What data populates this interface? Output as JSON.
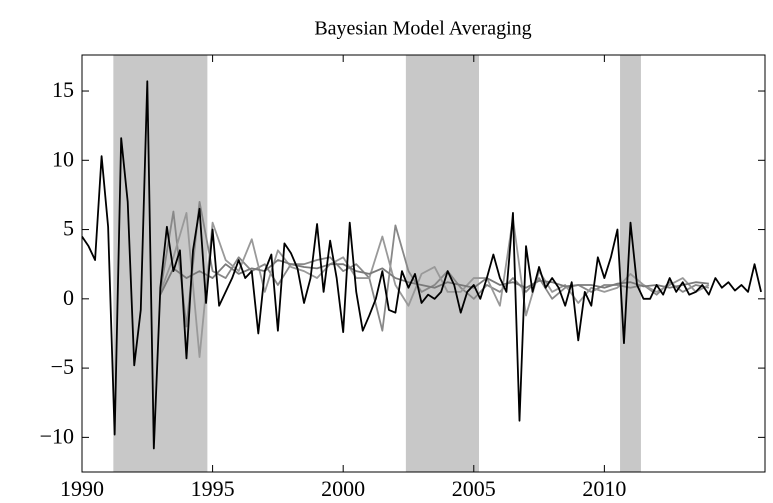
{
  "chart_data": {
    "type": "line",
    "title": "Bayesian Model Averaging",
    "xlim": [
      1990,
      2016.15
    ],
    "ylim": [
      -12.5,
      17.6
    ],
    "xticks": [
      1990,
      1995,
      2000,
      2005,
      2010
    ],
    "yticks": [
      {
        "value": -10,
        "label": "−10"
      },
      {
        "value": -5,
        "label": "−5"
      },
      0,
      5,
      10,
      15
    ],
    "shaded": [
      [
        1991.2,
        1994.8
      ],
      [
        2002.4,
        2005.2
      ],
      [
        2010.6,
        2011.4
      ]
    ],
    "shade_color": "#c8c8c8",
    "series": [
      {
        "color": "#000000",
        "x": [
          1990,
          1990.25,
          1990.5,
          1990.75,
          1991,
          1991.25,
          1991.5,
          1991.75,
          1992,
          1992.25,
          1992.5,
          1992.75,
          1993,
          1993.25,
          1993.5,
          1993.75,
          1994,
          1994.25,
          1994.5,
          1994.75,
          1995,
          1995.25,
          1995.5,
          1995.75,
          1996,
          1996.25,
          1996.5,
          1996.75,
          1997,
          1997.25,
          1997.5,
          1997.75,
          1998,
          1998.25,
          1998.5,
          1998.75,
          1999,
          1999.25,
          1999.5,
          1999.75,
          2000,
          2000.25,
          2000.5,
          2000.75,
          2001,
          2001.25,
          2001.5,
          2001.75,
          2002,
          2002.25,
          2002.5,
          2002.75,
          2003,
          2003.25,
          2003.5,
          2003.75,
          2004,
          2004.25,
          2004.5,
          2004.75,
          2005,
          2005.25,
          2005.5,
          2005.75,
          2006,
          2006.25,
          2006.5,
          2006.75,
          2007,
          2007.25,
          2007.5,
          2007.75,
          2008,
          2008.25,
          2008.5,
          2008.75,
          2009,
          2009.25,
          2009.5,
          2009.75,
          2010,
          2010.25,
          2010.5,
          2010.75,
          2011,
          2011.25,
          2011.5,
          2011.75,
          2012,
          2012.25,
          2012.5,
          2012.75,
          2013,
          2013.25,
          2013.5,
          2013.75,
          2014,
          2014.25,
          2014.5,
          2014.75,
          2015,
          2015.25,
          2015.5,
          2015.75,
          2016
        ],
        "values": [
          4.5,
          3.8,
          2.8,
          10.3,
          5.2,
          -9.8,
          11.6,
          7,
          -4.8,
          -0.8,
          15.7,
          -10.8,
          0.8,
          5.2,
          2,
          3.5,
          -4.3,
          3.5,
          6.5,
          -0.3,
          5,
          -0.5,
          0.5,
          1.5,
          2.8,
          1.5,
          2,
          -2.5,
          2,
          3.2,
          -2.3,
          4,
          3.3,
          2.2,
          -0.3,
          1.5,
          5.4,
          0.5,
          4.2,
          1.5,
          -2.4,
          5.5,
          0.5,
          -2.3,
          -1.2,
          0,
          2,
          -0.8,
          -1,
          2,
          0.8,
          1.8,
          -0.3,
          0.3,
          0,
          0.5,
          2,
          1,
          -1,
          0.5,
          1,
          0,
          1.5,
          3.2,
          1.5,
          0.5,
          6.2,
          -8.8,
          3.8,
          0.5,
          2.3,
          0.8,
          1.5,
          0.8,
          -0.5,
          1.2,
          -3,
          0.5,
          -0.5,
          3,
          1.5,
          3,
          5,
          -3.2,
          5.5,
          1,
          0,
          0,
          1,
          0.3,
          1.5,
          0.5,
          1.2,
          0.3,
          0.5,
          1,
          0.3,
          1.5,
          0.8,
          1.2,
          0.6,
          1.0,
          0.5,
          2.5,
          0.5
        ]
      },
      {
        "color": "#888888",
        "x": [
          1993,
          1993.5,
          1994,
          1994.5,
          1995,
          1995.5,
          1996,
          1996.5,
          1997,
          1997.5,
          1998,
          1998.5,
          1999,
          1999.5,
          2000,
          2000.5,
          2001,
          2001.5,
          2002,
          2002.5,
          2003,
          2003.5,
          2004,
          2004.5,
          2005,
          2005.5,
          2006,
          2006.5,
          2007,
          2007.5,
          2008,
          2008.5,
          2009,
          2009.5,
          2010,
          2010.5,
          2011,
          2011.5,
          2012,
          2012.5,
          2013,
          2013.5,
          2014
        ],
        "values": [
          0.5,
          6.3,
          -2,
          7,
          2,
          1.5,
          3,
          2,
          2.5,
          1,
          2.5,
          2.5,
          2.8,
          3,
          2,
          2.5,
          1.5,
          -2.3,
          5.3,
          2,
          0.5,
          1,
          2,
          0.8,
          0,
          1,
          0.5,
          1.5,
          0.5,
          1.5,
          0,
          0.8,
          1,
          0.5,
          1,
          1,
          0.8,
          1,
          0.3,
          1.2,
          0.5,
          1,
          0.8
        ]
      },
      {
        "color": "#999999",
        "x": [
          1993,
          1993.5,
          1994,
          1994.5,
          1995,
          1995.5,
          1996,
          1996.5,
          1997,
          1997.5,
          1998,
          1998.5,
          1999,
          1999.5,
          2000,
          2000.5,
          2001,
          2001.5,
          2002,
          2002.5,
          2003,
          2003.5,
          2004,
          2004.5,
          2005,
          2005.5,
          2006,
          2006.5,
          2007,
          2007.5,
          2008,
          2008.5,
          2009,
          2009.5,
          2010,
          2010.5,
          2011,
          2011.5,
          2012,
          2012.5,
          2013,
          2013.5,
          2014
        ],
        "values": [
          0.5,
          3,
          6.2,
          -4.2,
          5.5,
          2.8,
          2,
          4.3,
          0.5,
          3.5,
          2.3,
          2,
          1.5,
          2.5,
          3,
          1.5,
          1.5,
          4.5,
          1,
          -0.5,
          1.8,
          2.3,
          0.5,
          0.5,
          1.5,
          1.5,
          -0.5,
          5.8,
          -1.2,
          2,
          0.5,
          1,
          -0.3,
          0.8,
          0.5,
          0.8,
          1.8,
          1,
          0.5,
          1,
          1.5,
          0.5,
          1
        ]
      },
      {
        "color": "#7a7a7a",
        "x": [
          1993,
          1993.5,
          1994,
          1994.5,
          1995,
          1995.5,
          1996,
          1996.5,
          1997,
          1997.5,
          1998,
          1998.5,
          1999,
          1999.5,
          2000,
          2000.5,
          2001,
          2001.5,
          2002,
          2002.5,
          2003,
          2003.5,
          2004,
          2004.5,
          2005,
          2005.5,
          2006,
          2006.5,
          2007,
          2007.5,
          2008,
          2008.5,
          2009,
          2009.5,
          2010,
          2010.5,
          2011,
          2011.5,
          2012,
          2012.5,
          2013,
          2013.5,
          2014
        ],
        "values": [
          0.3,
          2.2,
          1.5,
          2,
          1.5,
          2.5,
          1.8,
          2.2,
          2,
          2.8,
          2.5,
          2.3,
          2.2,
          2.5,
          2.5,
          2,
          1.8,
          2.2,
          1.5,
          1.2,
          1,
          0.8,
          1.2,
          1,
          0.8,
          1.5,
          1,
          1.2,
          0.8,
          1.3,
          1.2,
          0.9,
          1,
          1,
          0.8,
          1.1,
          1.2,
          0.9,
          1,
          0.8,
          1,
          1.2,
          1.1
        ]
      }
    ]
  }
}
